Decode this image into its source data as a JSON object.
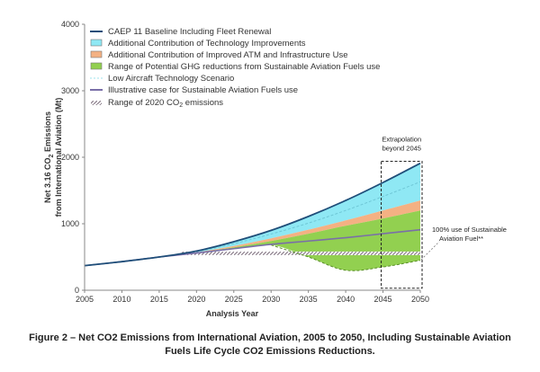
{
  "chart_data": {
    "type": "area",
    "title": "",
    "xlabel": "Analysis Year",
    "ylabel_line1": "Net 3.16 CO",
    "ylabel_sub": "2",
    "ylabel_rest": " Emissions",
    "ylabel_line2": "from International Aviation (Mt)",
    "xlim": [
      2005,
      2050
    ],
    "ylim": [
      0,
      4000
    ],
    "xticks": [
      "2005",
      "2010",
      "2015",
      "2020",
      "2025",
      "2030",
      "2035",
      "2040",
      "2045",
      "2050"
    ],
    "yticks": [
      "0",
      "1000",
      "2000",
      "3000",
      "4000"
    ],
    "grid": false,
    "legend_position": "top-left",
    "legend": [
      {
        "id": "baseline",
        "kind": "line",
        "color": "#1f4e79",
        "label": "CAEP 11 Baseline  Including Fleet Renewal"
      },
      {
        "id": "tech",
        "kind": "swatch",
        "color": "#8fe8f4",
        "label": "Additional  Contribution  of Technology  Improvements"
      },
      {
        "id": "atm",
        "kind": "swatch",
        "color": "#f4b183",
        "label": "Additional  Contribution  of Improved  ATM  and  Infrastructure  Use"
      },
      {
        "id": "saf",
        "kind": "swatch",
        "color": "#92d050",
        "label": "Range of Potential  GHG reductions  from Sustainable Aviation Fuels  use"
      },
      {
        "id": "lowtech",
        "kind": "dash",
        "color": "#9fe3ee",
        "label": "Low Aircraft Technology  Scenario"
      },
      {
        "id": "illustrative",
        "kind": "line",
        "color": "#7a6fa8",
        "label": "Illustrative  case for Sustainable  Aviation Fuels  use"
      },
      {
        "id": "range2020",
        "kind": "hatch",
        "color": "#8c7f8c",
        "label_main": "Range of 2020  CO",
        "label_sub": "2",
        "label_end": " emissions"
      }
    ],
    "x_band": [
      2005,
      2010,
      2015,
      2020,
      2025,
      2030,
      2035,
      2040,
      2045,
      2050
    ],
    "series": [
      {
        "name": "CAEP 11 Baseline  Including Fleet Renewal",
        "role": "baseline",
        "values": [
          370,
          430,
          500,
          590,
          730,
          900,
          1110,
          1350,
          1620,
          1910
        ]
      },
      {
        "name": "Low Aircraft Technology  Scenario",
        "role": "lowtech",
        "values": [
          370,
          430,
          500,
          580,
          700,
          845,
          1010,
          1200,
          1410,
          1630
        ]
      },
      {
        "name": "Additional  Contribution  of Technology  Improvements",
        "role": "tech_lower",
        "values": [
          370,
          430,
          500,
          570,
          665,
          780,
          910,
          1050,
          1200,
          1350
        ]
      },
      {
        "name": "Additional  Contribution  of Improved  ATM  and  Infrastructure  Use",
        "role": "atm_lower",
        "values": [
          370,
          430,
          500,
          565,
          645,
          740,
          850,
          970,
          1080,
          1200
        ]
      },
      {
        "name": "Range of Potential  GHG reductions  from Sustainable Aviation Fuels  use",
        "role": "saf_lower",
        "values": [
          370,
          430,
          500,
          560,
          620,
          680,
          500,
          300,
          350,
          450
        ]
      }
    ],
    "illustrative_saf": {
      "x": [
        2005,
        2010,
        2015,
        2020,
        2025,
        2030,
        2035,
        2040,
        2045,
        2050
      ],
      "y": [
        370,
        430,
        500,
        560,
        625,
        690,
        740,
        790,
        850,
        910
      ]
    },
    "range_2020": {
      "x_start": 2018,
      "x_end": 2050,
      "y": 555
    },
    "extrapolation_box": {
      "label_line1": "Extrapolation",
      "label_line2": "beyond 2045",
      "x_start": 2045,
      "x_end": 2050,
      "y_start": 30,
      "y_end": 1940
    },
    "annotation": {
      "line1": "100% use of Sustainable",
      "line2": "Aviation Fuel**"
    }
  },
  "caption": {
    "line1": "Figure 2 – Net CO2 Emissions from International Aviation, 2005 to 2050, Including Sustainable Aviation",
    "line2": "Fuels Life Cycle CO2 Emissions Reductions."
  }
}
